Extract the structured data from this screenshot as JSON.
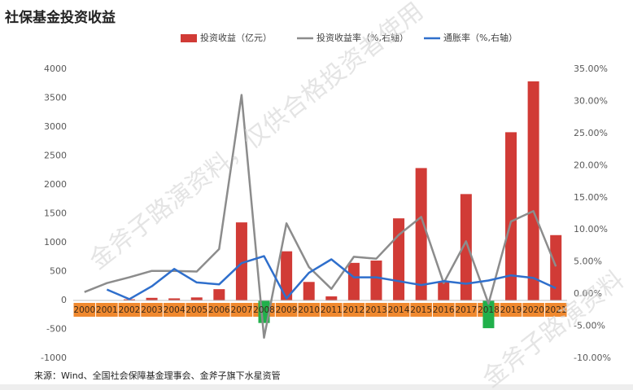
{
  "chart_data": {
    "type": "bar",
    "title": "社保基金投资收益",
    "source": "来源：Wind、全国社会保障基金理事会、金斧子旗下水星资管",
    "watermarks": [
      "金斧子路演资料，仅供合格投资者使用",
      "金斧子路演资料"
    ],
    "categories": [
      "2000",
      "2001",
      "2002",
      "2003",
      "2004",
      "2005",
      "2006",
      "2007",
      "2008",
      "2009",
      "2010",
      "2011",
      "2012",
      "2013",
      "2014",
      "2015",
      "2016",
      "2017",
      "2018",
      "2019",
      "2020",
      "2021"
    ],
    "series": [
      {
        "name": "投资收益（亿元）",
        "type": "bar",
        "color": "#d13b36",
        "negative_color": "#21b04b",
        "values": [
          0.2,
          7,
          19,
          45,
          36,
          52,
          195,
          1350,
          -390,
          850,
          320,
          70,
          650,
          690,
          1420,
          2290,
          320,
          1840,
          -480,
          2910,
          3790,
          1130
        ]
      },
      {
        "name": "投资收益率（%,右轴）",
        "type": "line",
        "axis": "y2",
        "color": "#8c8c8c",
        "values": [
          0.3,
          1.7,
          2.6,
          3.6,
          3.6,
          3.5,
          7.0,
          31.0,
          -6.8,
          11.0,
          4.2,
          0.8,
          5.8,
          5.5,
          9.2,
          12.0,
          1.7,
          8.2,
          -1.5,
          11.3,
          12.9,
          4.3
        ]
      },
      {
        "name": "通胀率（%,右轴）",
        "type": "line",
        "axis": "y2",
        "color": "#2f6fcc",
        "values": [
          null,
          0.7,
          -0.8,
          1.2,
          3.9,
          1.8,
          1.5,
          4.8,
          5.9,
          -0.7,
          3.3,
          5.4,
          2.6,
          2.6,
          2.0,
          1.4,
          2.0,
          1.6,
          2.1,
          2.9,
          2.5,
          0.9
        ]
      }
    ],
    "ylim": [
      -1000,
      4000
    ],
    "yticks": [
      -1000,
      -500,
      0,
      500,
      1000,
      1500,
      2000,
      2500,
      3000,
      3500,
      4000
    ],
    "y2lim": [
      -10,
      35
    ],
    "y2ticks": [
      {
        "value": -10,
        "label": "-10.00%"
      },
      {
        "value": -5,
        "label": "-5.00%"
      },
      {
        "value": 0,
        "label": "0.00%"
      },
      {
        "value": 5,
        "label": "5.00%"
      },
      {
        "value": 10,
        "label": "10.00%"
      },
      {
        "value": 15,
        "label": "15.00%"
      },
      {
        "value": 20,
        "label": "20.00%"
      },
      {
        "value": 25,
        "label": "25.00%"
      },
      {
        "value": 30,
        "label": "30.00%"
      },
      {
        "value": 35,
        "label": "35.00%"
      }
    ],
    "grid": false,
    "legend": "top"
  }
}
